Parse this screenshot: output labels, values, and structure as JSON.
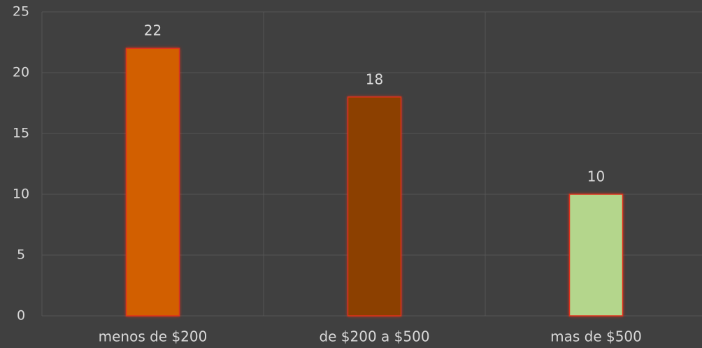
{
  "chart_data": {
    "type": "bar",
    "categories": [
      "menos de $200",
      "de $200 a $500",
      "mas de $500"
    ],
    "values": [
      22,
      18,
      10
    ],
    "colors": [
      "#d25f00",
      "#8c4100",
      "#b4d68c"
    ],
    "edge_color": "#e0301e",
    "ylim": [
      0,
      25
    ],
    "yticks": [
      0,
      5,
      10,
      15,
      20,
      25
    ],
    "grid": true
  }
}
